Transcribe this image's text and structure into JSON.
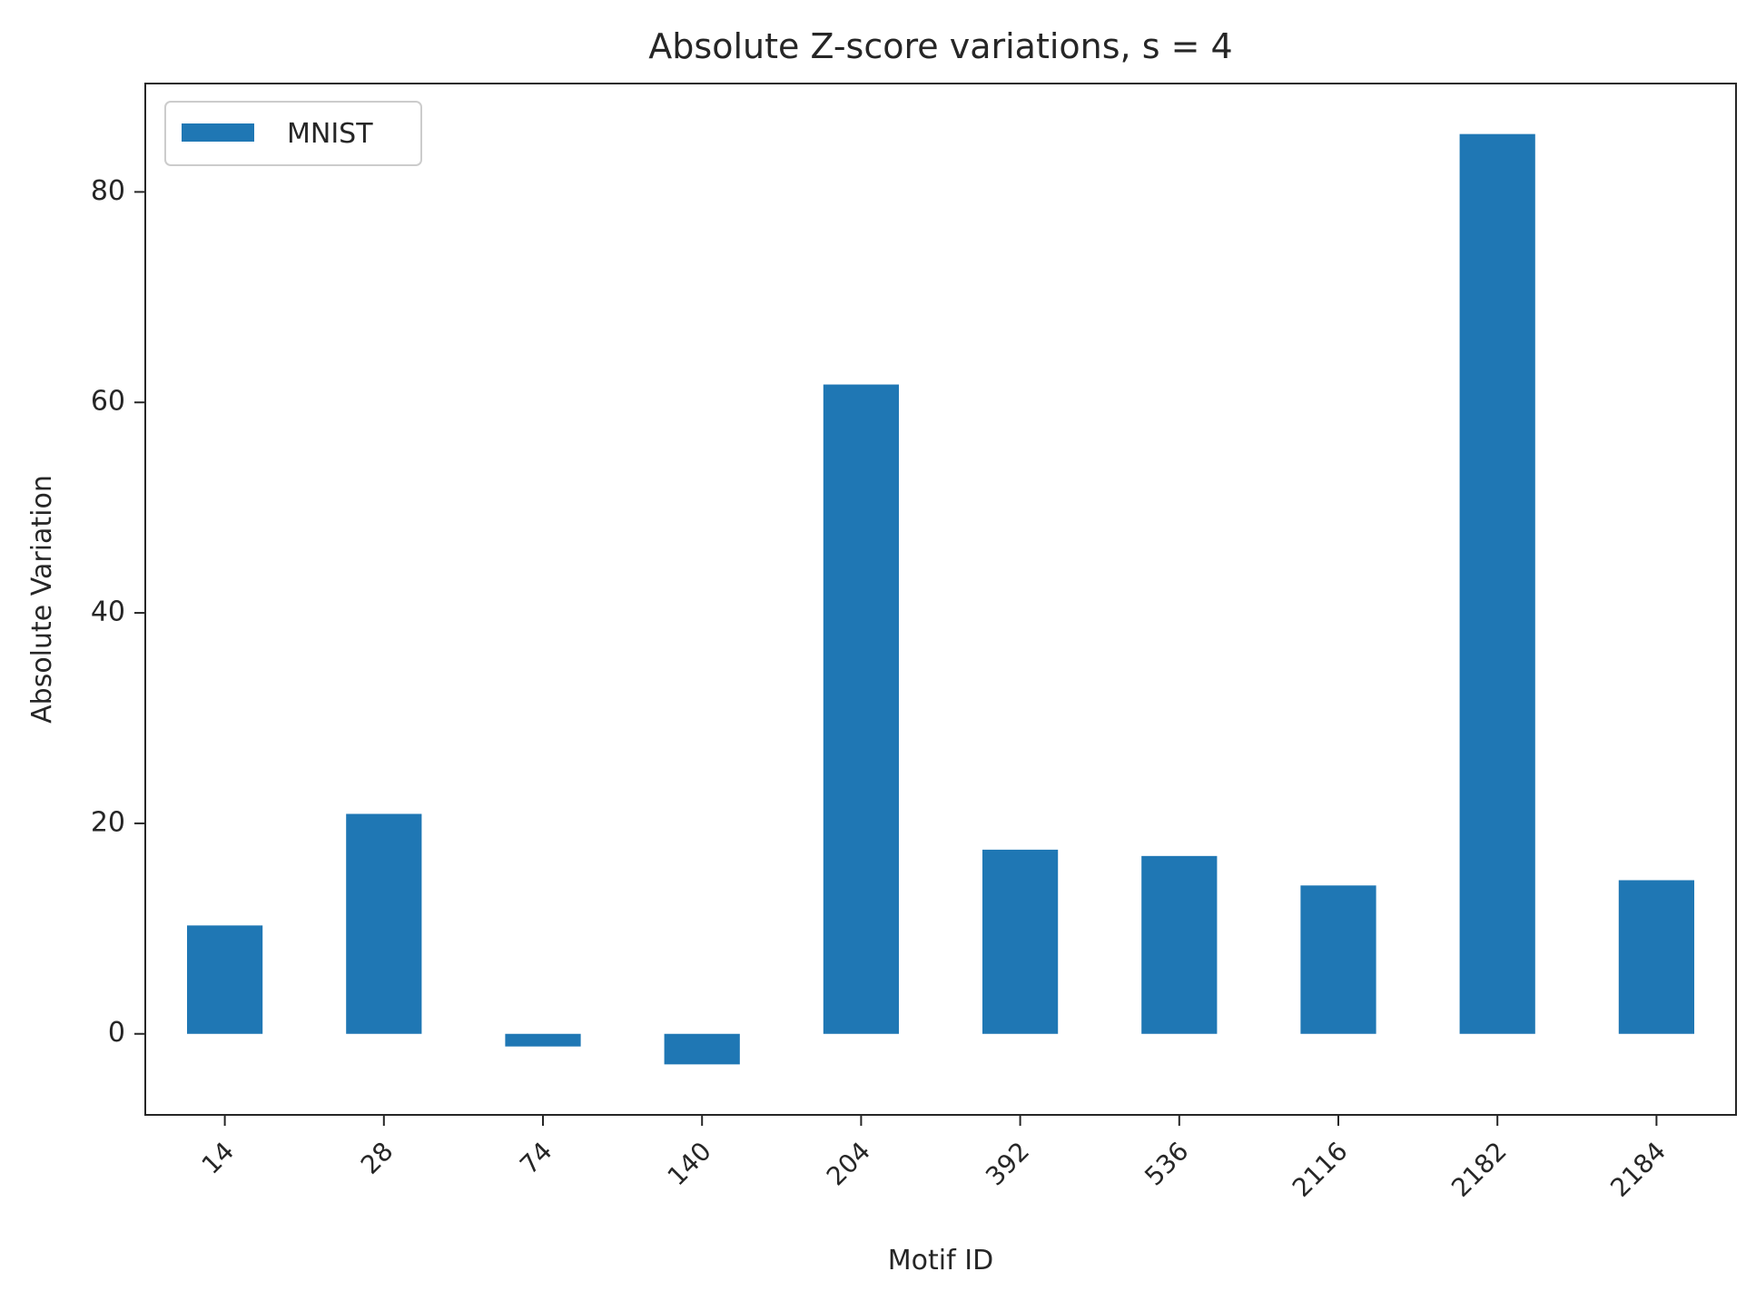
{
  "chart_data": {
    "type": "bar",
    "title": "Absolute Z-score variations, s = 4",
    "xlabel": "Motif ID",
    "ylabel": "Absolute Variation",
    "categories": [
      "14",
      "28",
      "74",
      "140",
      "204",
      "392",
      "536",
      "2116",
      "2182",
      "2184"
    ],
    "series": [
      {
        "name": "MNIST",
        "color": "#1f77b4",
        "values": [
          10.3,
          20.9,
          -1.2,
          -2.9,
          61.7,
          17.5,
          16.9,
          14.1,
          85.5,
          14.6
        ]
      }
    ],
    "yticks": [
      0,
      20,
      40,
      60,
      80
    ],
    "ylim": [
      -7.7,
      90.3
    ],
    "grid": false,
    "legend_position": "top-left",
    "xtick_rotation_deg": 45
  }
}
